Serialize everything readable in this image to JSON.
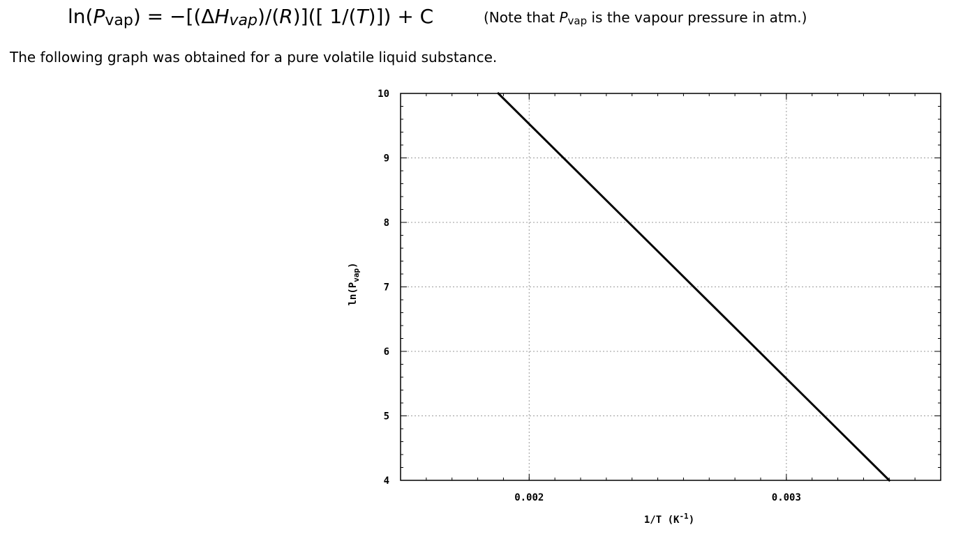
{
  "equation": {
    "ln": "ln(",
    "P": "P",
    "vap_sub": "vap",
    "middle": ") = −[(Δ",
    "H": "H",
    "vap_sub_italic": "vap",
    "after_h": ")/(",
    "R": "R",
    "after_r": ")]([ 1/(",
    "T": "T",
    "tail": ")]) + C"
  },
  "note": {
    "prefix": "(Note that ",
    "P": "P",
    "vap_sub": "vap",
    "suffix": " is the vapour pressure in atm.)"
  },
  "intro_text": "The following graph was obtained for a pure volatile liquid substance.",
  "chart_data": {
    "type": "line",
    "xlabel": "1/T (K",
    "xlabel_sup": "-1",
    "xlabel_close": ")",
    "ylabel": "ln(P",
    "ylabel_sub": "vap",
    "ylabel_close": ")",
    "xlim": [
      0.0015,
      0.0036
    ],
    "ylim": [
      4,
      10
    ],
    "xticks": [
      0.002,
      0.003
    ],
    "xtick_labels": [
      "0.002",
      "0.003"
    ],
    "yticks": [
      4,
      5,
      6,
      7,
      8,
      9,
      10
    ],
    "ytick_labels": [
      "4",
      "5",
      "6",
      "7",
      "8",
      "9",
      "10"
    ],
    "grid": true,
    "series": [
      {
        "color": "#000000",
        "x": [
          0.00188,
          0.0034
        ],
        "y": [
          10,
          4
        ]
      }
    ]
  }
}
